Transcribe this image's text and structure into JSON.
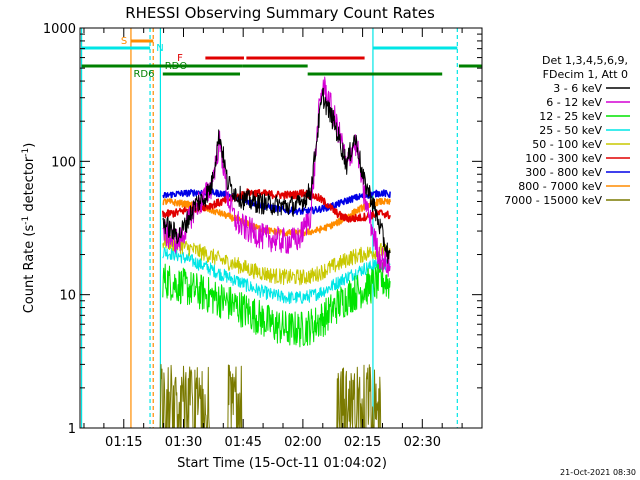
{
  "chart_data": {
    "type": "line",
    "title": "RHESSI Observing Summary Count Rates",
    "xlabel": "Start Time (15-Oct-11 01:04:02)",
    "ylabel": "Count Rate (s⁻¹ detector⁻¹)",
    "ylabel_main": "Count Rate (s",
    "ylabel_sup1": "-1",
    "ylabel_mid": " detector",
    "ylabel_sup2": "-1",
    "ylabel_end": ")",
    "yscale": "log",
    "ylim": [
      1,
      1000
    ],
    "xlim_minutes": [
      64.0,
      165.0
    ],
    "x_ticks": [
      {
        "label": "01:15",
        "m": 75
      },
      {
        "label": "01:30",
        "m": 90
      },
      {
        "label": "01:45",
        "m": 105
      },
      {
        "label": "02:00",
        "m": 120
      },
      {
        "label": "02:15",
        "m": 135
      },
      {
        "label": "02:30",
        "m": 150
      }
    ],
    "y_ticks": [
      {
        "label": "1",
        "v": 1
      },
      {
        "label": "10",
        "v": 10
      },
      {
        "label": "100",
        "v": 100
      },
      {
        "label": "1000",
        "v": 1000
      }
    ],
    "legend_header": [
      "Det 1,3,4,5,6,9,",
      "FDecim 1, Att 0"
    ],
    "legend_position": "right",
    "footer_date": "21-Oct-2021 08:30",
    "series": [
      {
        "name": "3 - 6 keV",
        "color": "#000000",
        "points": [
          [
            85,
            35
          ],
          [
            87,
            30
          ],
          [
            89,
            28
          ],
          [
            91,
            36
          ],
          [
            93,
            48
          ],
          [
            95,
            52
          ],
          [
            97,
            65
          ],
          [
            99,
            160
          ],
          [
            100,
            110
          ],
          [
            101,
            70
          ],
          [
            103,
            58
          ],
          [
            105,
            52
          ],
          [
            107,
            50
          ],
          [
            110,
            48
          ],
          [
            113,
            47
          ],
          [
            116,
            46
          ],
          [
            119,
            47
          ],
          [
            122,
            60
          ],
          [
            124,
            200
          ],
          [
            125,
            310
          ],
          [
            126,
            260
          ],
          [
            128,
            190
          ],
          [
            130,
            120
          ],
          [
            131,
            95
          ],
          [
            133,
            150
          ],
          [
            134,
            120
          ],
          [
            135,
            75
          ],
          [
            137,
            55
          ],
          [
            139,
            35
          ],
          [
            141,
            22
          ],
          [
            142,
            18
          ]
        ]
      },
      {
        "name": "6 - 12 keV",
        "color": "#d400d4",
        "points": [
          [
            85,
            30
          ],
          [
            87,
            26
          ],
          [
            89,
            25
          ],
          [
            91,
            34
          ],
          [
            93,
            46
          ],
          [
            95,
            52
          ],
          [
            97,
            65
          ],
          [
            99,
            140
          ],
          [
            100,
            95
          ],
          [
            101,
            55
          ],
          [
            103,
            36
          ],
          [
            105,
            32
          ],
          [
            107,
            30
          ],
          [
            110,
            27
          ],
          [
            113,
            26
          ],
          [
            116,
            25
          ],
          [
            119,
            26
          ],
          [
            122,
            40
          ],
          [
            124,
            230
          ],
          [
            125,
            380
          ],
          [
            126,
            320
          ],
          [
            128,
            210
          ],
          [
            130,
            130
          ],
          [
            131,
            90
          ],
          [
            133,
            140
          ],
          [
            134,
            110
          ],
          [
            135,
            62
          ],
          [
            137,
            35
          ],
          [
            139,
            20
          ],
          [
            141,
            17
          ],
          [
            142,
            16
          ]
        ]
      },
      {
        "name": "12 - 25 keV",
        "color": "#00e400",
        "points": [
          [
            85,
            13
          ],
          [
            88,
            12
          ],
          [
            92,
            11
          ],
          [
            96,
            10
          ],
          [
            100,
            9
          ],
          [
            104,
            8
          ],
          [
            108,
            7
          ],
          [
            112,
            6
          ],
          [
            116,
            5.5
          ],
          [
            120,
            5.5
          ],
          [
            123,
            6
          ],
          [
            126,
            7
          ],
          [
            129,
            8.5
          ],
          [
            132,
            10
          ],
          [
            135,
            11
          ],
          [
            138,
            12
          ],
          [
            140,
            13
          ],
          [
            142,
            12
          ]
        ]
      },
      {
        "name": "25 - 50 keV",
        "color": "#00e6e6",
        "points": [
          [
            85,
            21
          ],
          [
            88,
            20
          ],
          [
            92,
            18
          ],
          [
            96,
            16
          ],
          [
            100,
            14
          ],
          [
            104,
            12.5
          ],
          [
            108,
            11
          ],
          [
            112,
            10
          ],
          [
            116,
            9.5
          ],
          [
            120,
            9.5
          ],
          [
            123,
            10
          ],
          [
            126,
            11
          ],
          [
            129,
            12.5
          ],
          [
            132,
            14
          ],
          [
            135,
            15.5
          ],
          [
            138,
            16.5
          ],
          [
            140,
            17
          ],
          [
            142,
            16
          ]
        ]
      },
      {
        "name": "50 - 100 keV",
        "color": "#c8c800",
        "points": [
          [
            85,
            25
          ],
          [
            88,
            24
          ],
          [
            92,
            22
          ],
          [
            96,
            20
          ],
          [
            100,
            18
          ],
          [
            104,
            16.5
          ],
          [
            108,
            15
          ],
          [
            112,
            14
          ],
          [
            116,
            13.5
          ],
          [
            120,
            13.5
          ],
          [
            123,
            14
          ],
          [
            126,
            15.5
          ],
          [
            129,
            17
          ],
          [
            132,
            19
          ],
          [
            135,
            20
          ],
          [
            138,
            21
          ],
          [
            140,
            21.5
          ],
          [
            142,
            20
          ]
        ]
      },
      {
        "name": "100 - 300 keV",
        "color": "#e00000",
        "points": [
          [
            85,
            40
          ],
          [
            88,
            41
          ],
          [
            92,
            44
          ],
          [
            96,
            46
          ],
          [
            100,
            50
          ],
          [
            104,
            55
          ],
          [
            106,
            58
          ],
          [
            108,
            58
          ],
          [
            110,
            57
          ],
          [
            114,
            56
          ],
          [
            118,
            56
          ],
          [
            120,
            58
          ],
          [
            122,
            56
          ],
          [
            124,
            53
          ],
          [
            126,
            48
          ],
          [
            128,
            42
          ],
          [
            130,
            38
          ],
          [
            132,
            37
          ],
          [
            135,
            38
          ],
          [
            138,
            40
          ],
          [
            140,
            41
          ],
          [
            142,
            39
          ]
        ]
      },
      {
        "name": "300 - 800 keV",
        "color": "#0000e6",
        "points": [
          [
            85,
            55
          ],
          [
            88,
            57
          ],
          [
            92,
            58
          ],
          [
            96,
            59
          ],
          [
            100,
            57
          ],
          [
            104,
            53
          ],
          [
            108,
            48
          ],
          [
            112,
            45
          ],
          [
            116,
            43
          ],
          [
            120,
            42
          ],
          [
            123,
            43
          ],
          [
            126,
            45
          ],
          [
            129,
            48
          ],
          [
            132,
            52
          ],
          [
            135,
            55
          ],
          [
            138,
            57
          ],
          [
            140,
            58
          ],
          [
            142,
            56
          ]
        ]
      },
      {
        "name": "800 - 7000 keV",
        "color": "#ff8c00",
        "points": [
          [
            85,
            50
          ],
          [
            88,
            49
          ],
          [
            92,
            47
          ],
          [
            96,
            44
          ],
          [
            100,
            40
          ],
          [
            104,
            36
          ],
          [
            108,
            32
          ],
          [
            112,
            30
          ],
          [
            116,
            29
          ],
          [
            120,
            29
          ],
          [
            123,
            30
          ],
          [
            126,
            32
          ],
          [
            129,
            35
          ],
          [
            132,
            40
          ],
          [
            135,
            45
          ],
          [
            138,
            49
          ],
          [
            140,
            50
          ],
          [
            142,
            49
          ]
        ]
      },
      {
        "name": "7000 - 15000 keV",
        "color": "#7a7a00",
        "points": [
          [
            85,
            1.0
          ]
        ]
      }
    ],
    "state_bars": [
      {
        "label": "S",
        "color": "#ff8c00"
      },
      {
        "label": "N",
        "color": "#00e6e6"
      },
      {
        "label": "F",
        "color": "#e00000"
      },
      {
        "label": "RDO",
        "color": "#008000"
      },
      {
        "label": "RD6",
        "color": "#008000"
      }
    ]
  }
}
